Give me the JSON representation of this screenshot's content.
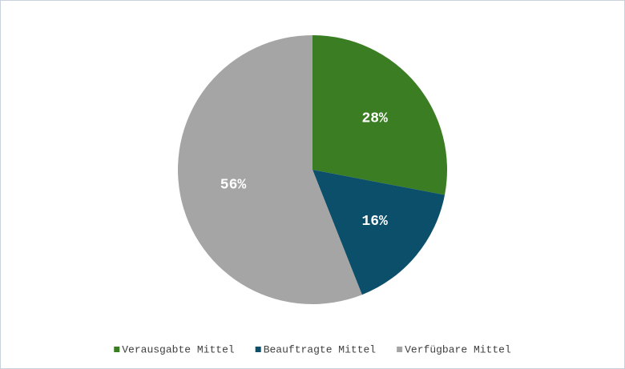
{
  "chart_data": {
    "type": "pie",
    "categories": [
      "Verausgabte Mittel",
      "Beauftragte Mittel",
      "Verfügbare Mittel"
    ],
    "values": [
      28,
      16,
      56
    ],
    "value_labels": [
      "28%",
      "16%",
      "56%"
    ],
    "colors": [
      "#3b7d23",
      "#0c4f6b",
      "#a5a5a5"
    ],
    "legend": "bottom"
  }
}
